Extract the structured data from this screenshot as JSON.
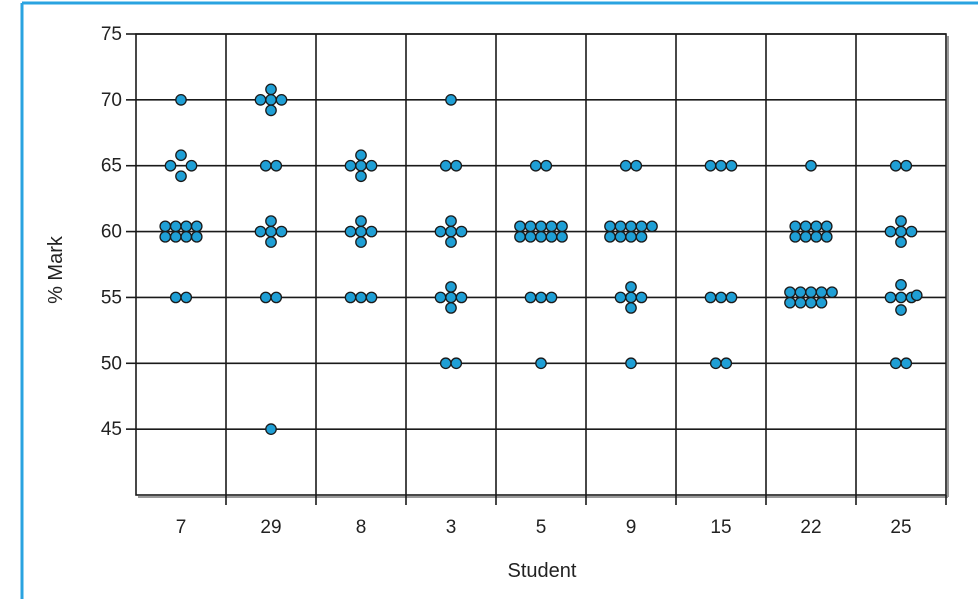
{
  "chart_data": {
    "type": "scatter",
    "xlabel": "Student",
    "ylabel": "% Mark",
    "categories": [
      "7",
      "29",
      "8",
      "3",
      "5",
      "9",
      "15",
      "22",
      "25"
    ],
    "ylim": [
      40,
      75
    ],
    "yticks": [
      45,
      50,
      55,
      60,
      65,
      70,
      75
    ],
    "grid": true,
    "marker_color": "#1f9fd5",
    "marker_edge_color": "#1a1a1a",
    "frame_color": "#2aa3e0",
    "points": [
      {
        "category": "7",
        "values": {
          "70": 1,
          "65": 4,
          "60": 8,
          "55": 2
        }
      },
      {
        "category": "29",
        "values": {
          "70": 5,
          "65": 2,
          "60": 5,
          "55": 2,
          "45": 1
        }
      },
      {
        "category": "8",
        "values": {
          "65": 5,
          "60": 5,
          "55": 3
        }
      },
      {
        "category": "3",
        "values": {
          "70": 1,
          "65": 2,
          "60": 5,
          "55": 5,
          "50": 2
        }
      },
      {
        "category": "5",
        "values": {
          "65": 2,
          "60": 10,
          "55": 3,
          "50": 1
        }
      },
      {
        "category": "9",
        "values": {
          "65": 2,
          "60": 9,
          "55": 5,
          "50": 1
        }
      },
      {
        "category": "15",
        "values": {
          "65": 3,
          "55": 3,
          "50": 2
        }
      },
      {
        "category": "22",
        "values": {
          "65": 1,
          "60": 8,
          "55": 9
        }
      },
      {
        "category": "25",
        "values": {
          "65": 2,
          "60": 5,
          "55": 6,
          "50": 2
        }
      }
    ]
  }
}
